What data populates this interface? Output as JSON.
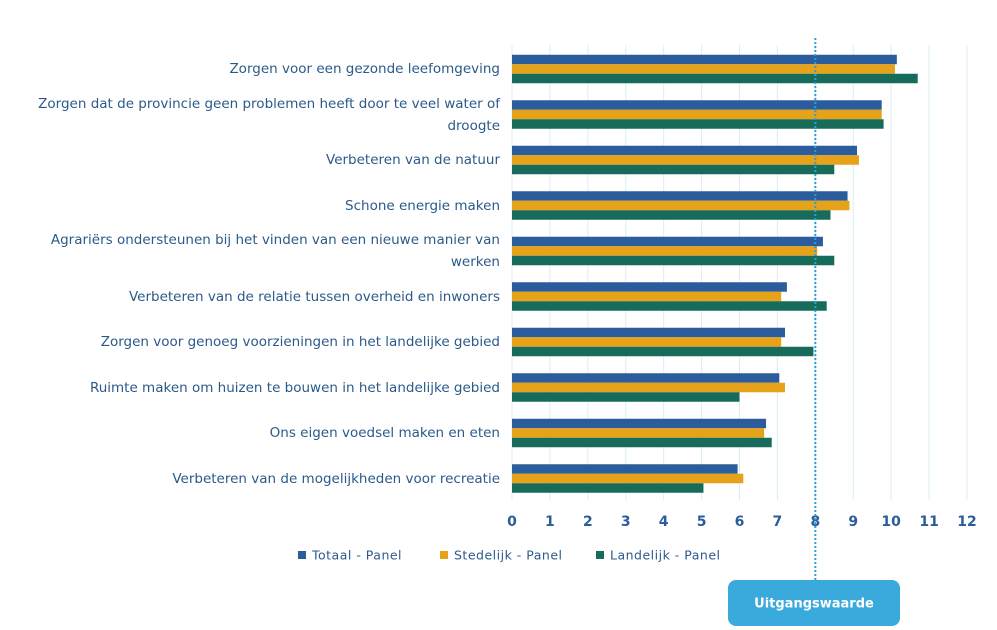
{
  "chart_data": {
    "type": "barh",
    "categories": [
      "Zorgen voor een gezonde leefomgeving",
      "Zorgen dat de provincie geen problemen heeft door te veel water of droogte",
      "Verbeteren van de natuur",
      "Schone energie maken",
      "Agrariërs ondersteunen bij het vinden van een nieuwe manier van werken",
      "Verbeteren van de relatie tussen overheid en inwoners",
      "Zorgen voor genoeg voorzieningen in het landelijke gebied",
      "Ruimte maken om huizen te bouwen in het landelijke gebied",
      "Ons eigen voedsel maken en eten",
      "Verbeteren van de mogelijkheden voor recreatie"
    ],
    "series": [
      {
        "name": "Totaal - Panel",
        "color": "#2b5c9b",
        "values": [
          10.15,
          9.75,
          9.1,
          8.85,
          8.2,
          7.25,
          7.2,
          7.05,
          6.7,
          5.95
        ]
      },
      {
        "name": "Stedelijk - Panel",
        "color": "#e6a219",
        "values": [
          10.1,
          9.75,
          9.15,
          8.9,
          8.05,
          7.1,
          7.1,
          7.2,
          6.65,
          6.1
        ]
      },
      {
        "name": "Landelijk - Panel",
        "color": "#176b5b",
        "values": [
          10.7,
          9.8,
          8.5,
          8.4,
          8.5,
          8.3,
          7.95,
          6.0,
          6.85,
          5.05
        ]
      }
    ],
    "xlim": [
      0,
      12
    ],
    "xticks": [
      0,
      1,
      2,
      3,
      4,
      5,
      6,
      7,
      8,
      9,
      10,
      11,
      12
    ],
    "grid": true,
    "reference_line": 8,
    "reference_label": "Uitgangswaarde"
  }
}
